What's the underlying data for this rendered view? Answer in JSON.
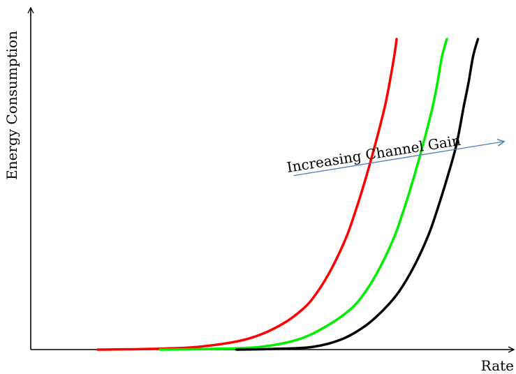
{
  "chart_data": {
    "type": "line",
    "xlabel": "Rate",
    "ylabel": "Energy Consumption",
    "xlim": [
      0,
      1
    ],
    "ylim": [
      0,
      1
    ],
    "grid": false,
    "ticks": "none",
    "series": [
      {
        "color": "#ff0000",
        "x": [
          0.14,
          0.25,
          0.35,
          0.45,
          0.52,
          0.57,
          0.6,
          0.63,
          0.66,
          0.68,
          0.7,
          0.72,
          0.74,
          0.75,
          0.76,
          0.765
        ],
        "y": [
          0.0,
          0.002,
          0.008,
          0.03,
          0.07,
          0.12,
          0.17,
          0.24,
          0.33,
          0.41,
          0.5,
          0.6,
          0.71,
          0.78,
          0.86,
          0.91
        ]
      },
      {
        "color": "#00ee00",
        "x": [
          0.27,
          0.38,
          0.48,
          0.56,
          0.62,
          0.67,
          0.7,
          0.73,
          0.76,
          0.78,
          0.8,
          0.82,
          0.84,
          0.85,
          0.86,
          0.87
        ],
        "y": [
          0.0,
          0.002,
          0.008,
          0.03,
          0.07,
          0.12,
          0.17,
          0.24,
          0.33,
          0.41,
          0.5,
          0.6,
          0.71,
          0.78,
          0.86,
          0.91
        ]
      },
      {
        "color": "#000000",
        "x": [
          0.43,
          0.51,
          0.59,
          0.65,
          0.7,
          0.74,
          0.77,
          0.8,
          0.83,
          0.85,
          0.87,
          0.89,
          0.905,
          0.915,
          0.925,
          0.935
        ],
        "y": [
          0.0,
          0.002,
          0.008,
          0.03,
          0.07,
          0.12,
          0.17,
          0.24,
          0.33,
          0.41,
          0.5,
          0.6,
          0.71,
          0.78,
          0.86,
          0.91
        ]
      }
    ],
    "annotations": [
      {
        "text": "Increasing Channel Gain",
        "arrow_color": "#4a7ebb",
        "arrow_from": [
          0.55,
          0.51
        ],
        "arrow_to": [
          0.99,
          0.61
        ]
      }
    ]
  }
}
